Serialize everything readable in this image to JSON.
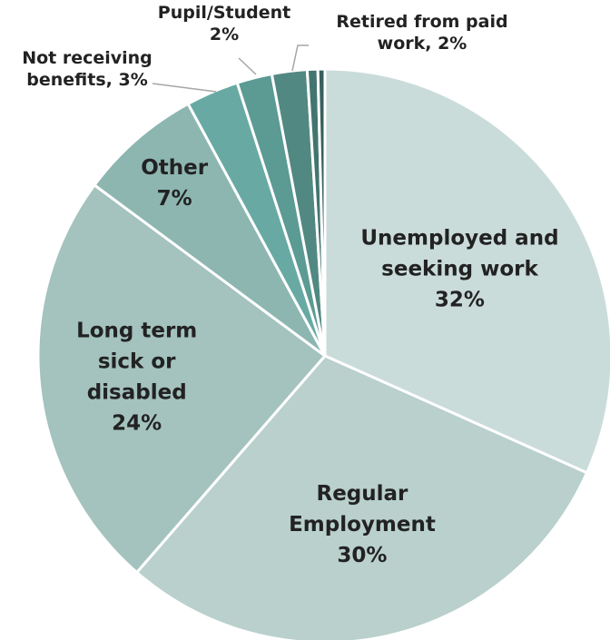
{
  "chart_data": {
    "type": "pie",
    "title": "",
    "start_angle_deg": 0,
    "direction": "clockwise",
    "slices": [
      {
        "label": "Unemployed and seeking work",
        "value": 32,
        "display_lines": [
          "Unemployed and",
          "seeking work",
          "32%"
        ],
        "color": "#cadcda"
      },
      {
        "label": "Regular Employment",
        "value": 30,
        "display_lines": [
          "Regular",
          "Employment",
          "30%"
        ],
        "color": "#b9d0cc"
      },
      {
        "label": "Long term sick or disabled",
        "value": 24,
        "display_lines": [
          "Long term",
          "sick or",
          "disabled",
          "24%"
        ],
        "color": "#a4c2be"
      },
      {
        "label": "Other",
        "value": 7,
        "display_lines": [
          "Other",
          "7%"
        ],
        "color": "#8db6b1"
      },
      {
        "label": "Not receiving benefits",
        "value": 3,
        "display_lines": [
          "Not receiving",
          "benefits, 3%"
        ],
        "color": "#68aaa3"
      },
      {
        "label": "Pupil/Student",
        "value": 2,
        "display_lines": [
          "Pupil/Student",
          "2%"
        ],
        "color": "#5c9a94"
      },
      {
        "label": "Retired from paid work",
        "value": 2,
        "display_lines": [
          "Retired from paid",
          "work, 2%"
        ],
        "color": "#528882"
      },
      {
        "label": "",
        "value": 0.6,
        "display_lines": [],
        "color": "#437570"
      },
      {
        "label": "",
        "value": 0.4,
        "display_lines": [],
        "color": "#36605c"
      }
    ]
  }
}
